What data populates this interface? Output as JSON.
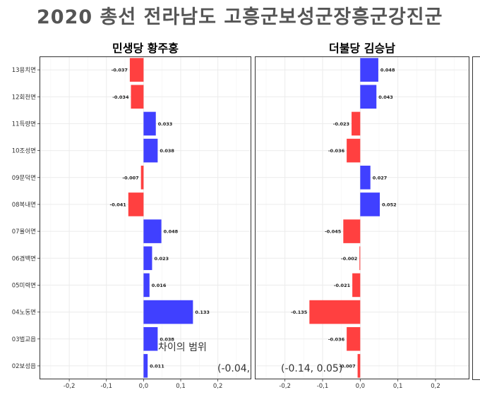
{
  "title": "2020 총선 전라남도 고흥군보성군장흥군강진군",
  "colors": {
    "positive": "#4040ff",
    "negative": "#ff4040",
    "grid": "#ebebeb",
    "panel_border": "#333333"
  },
  "annotations": {
    "legend_title": "차이의 범위",
    "range_1": "(-0.04,",
    "range_2": "(-0.14, 0.05)"
  },
  "chart_data": {
    "type": "bar",
    "orientation": "horizontal",
    "categories": [
      "13용치면",
      "12회천면",
      "11득량면",
      "10조성면",
      "09문덕면",
      "08복내면",
      "07율어면",
      "06겸백면",
      "05미력면",
      "04노동면",
      "03벌교읍",
      "02보성읍"
    ],
    "xlim": [
      -0.28,
      0.29
    ],
    "xticks": [
      -0.2,
      -0.1,
      0.0,
      0.1,
      0.2
    ],
    "xtick_labels": [
      "-0,2",
      "-0,1",
      "0,0",
      "0,1",
      "0,2"
    ],
    "grid": true,
    "panels": [
      {
        "title": "민생당 황주홍",
        "values": [
          -0.037,
          -0.034,
          0.033,
          0.038,
          -0.007,
          -0.041,
          0.048,
          0.023,
          0.016,
          0.133,
          0.038,
          0.011
        ]
      },
      {
        "title": "더불당 김승남",
        "values": [
          0.048,
          0.043,
          -0.023,
          -0.036,
          0.027,
          0.052,
          -0.045,
          -0.002,
          -0.021,
          -0.135,
          -0.036,
          -0.007
        ]
      }
    ]
  }
}
